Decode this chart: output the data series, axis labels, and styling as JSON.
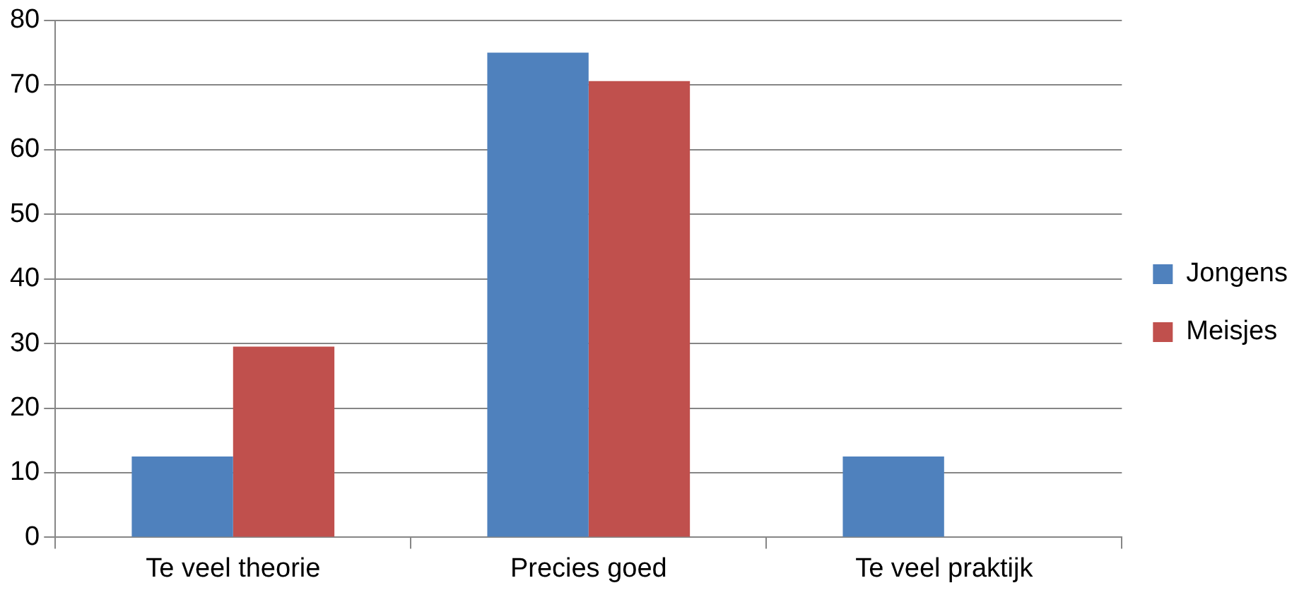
{
  "chart_data": {
    "type": "bar",
    "categories": [
      "Te veel theorie",
      "Precies goed",
      "Te veel praktijk"
    ],
    "series": [
      {
        "name": "Jongens",
        "color": "#4f81bd",
        "values": [
          12.5,
          75,
          12.5
        ]
      },
      {
        "name": "Meisjes",
        "color": "#c0504d",
        "values": [
          29.5,
          70.6,
          0
        ]
      }
    ],
    "ylim": [
      0,
      80
    ],
    "yticks": [
      0,
      10,
      20,
      30,
      40,
      50,
      60,
      70,
      80
    ],
    "grid": "y",
    "legend": "right"
  }
}
